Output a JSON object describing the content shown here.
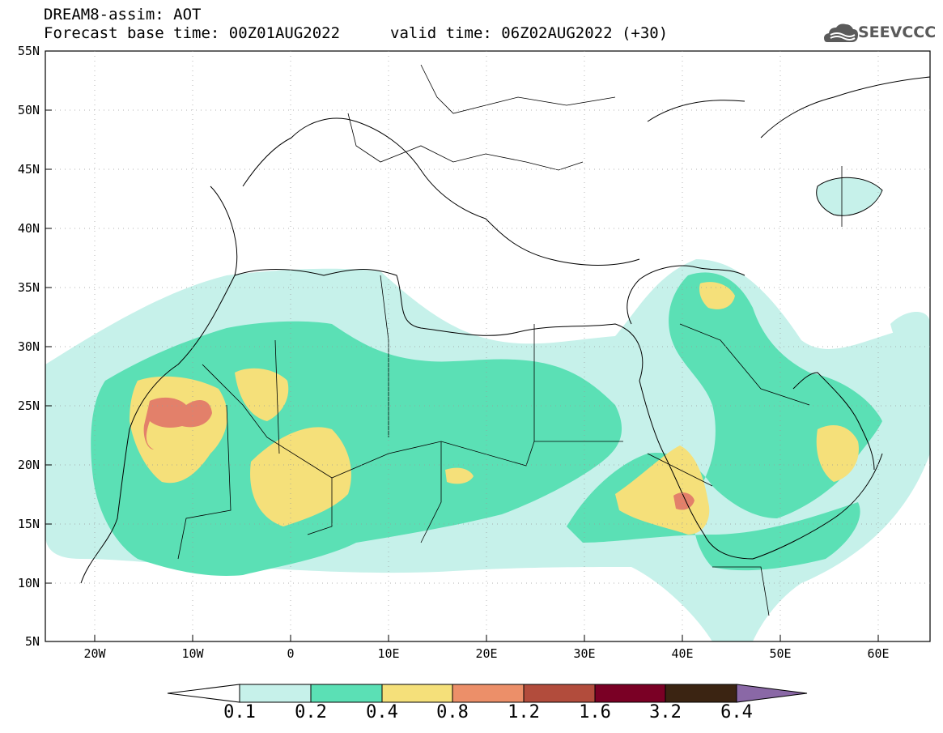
{
  "header": {
    "line1": "DREAM8-assim: AOT",
    "line2": "Forecast base time: 00Z01AUG2022",
    "valid": "valid time: 06Z02AUG2022 (+30)",
    "logo_text": "SEEVCCC"
  },
  "axes": {
    "lat_labels": [
      "55N",
      "50N",
      "45N",
      "40N",
      "35N",
      "30N",
      "25N",
      "20N",
      "15N",
      "10N",
      "5N"
    ],
    "lon_labels": [
      "20W",
      "10W",
      "0",
      "10E",
      "20E",
      "30E",
      "40E",
      "50E",
      "60E"
    ]
  },
  "colorbar": {
    "labels": [
      "0.1",
      "0.2",
      "0.4",
      "0.8",
      "1.2",
      "1.6",
      "3.2",
      "6.4"
    ],
    "colors": [
      "#ffffff",
      "#c6f1ea",
      "#5be0b5",
      "#f5e07a",
      "#ec8f69",
      "#b24c3c",
      "#7a0025",
      "#3b2412",
      "#8a68a6"
    ]
  },
  "field_colors": {
    "low": "#c6f1ea",
    "moderate": "#5be0b5",
    "high": "#f5e07a",
    "very_high": "#e3806a"
  }
}
